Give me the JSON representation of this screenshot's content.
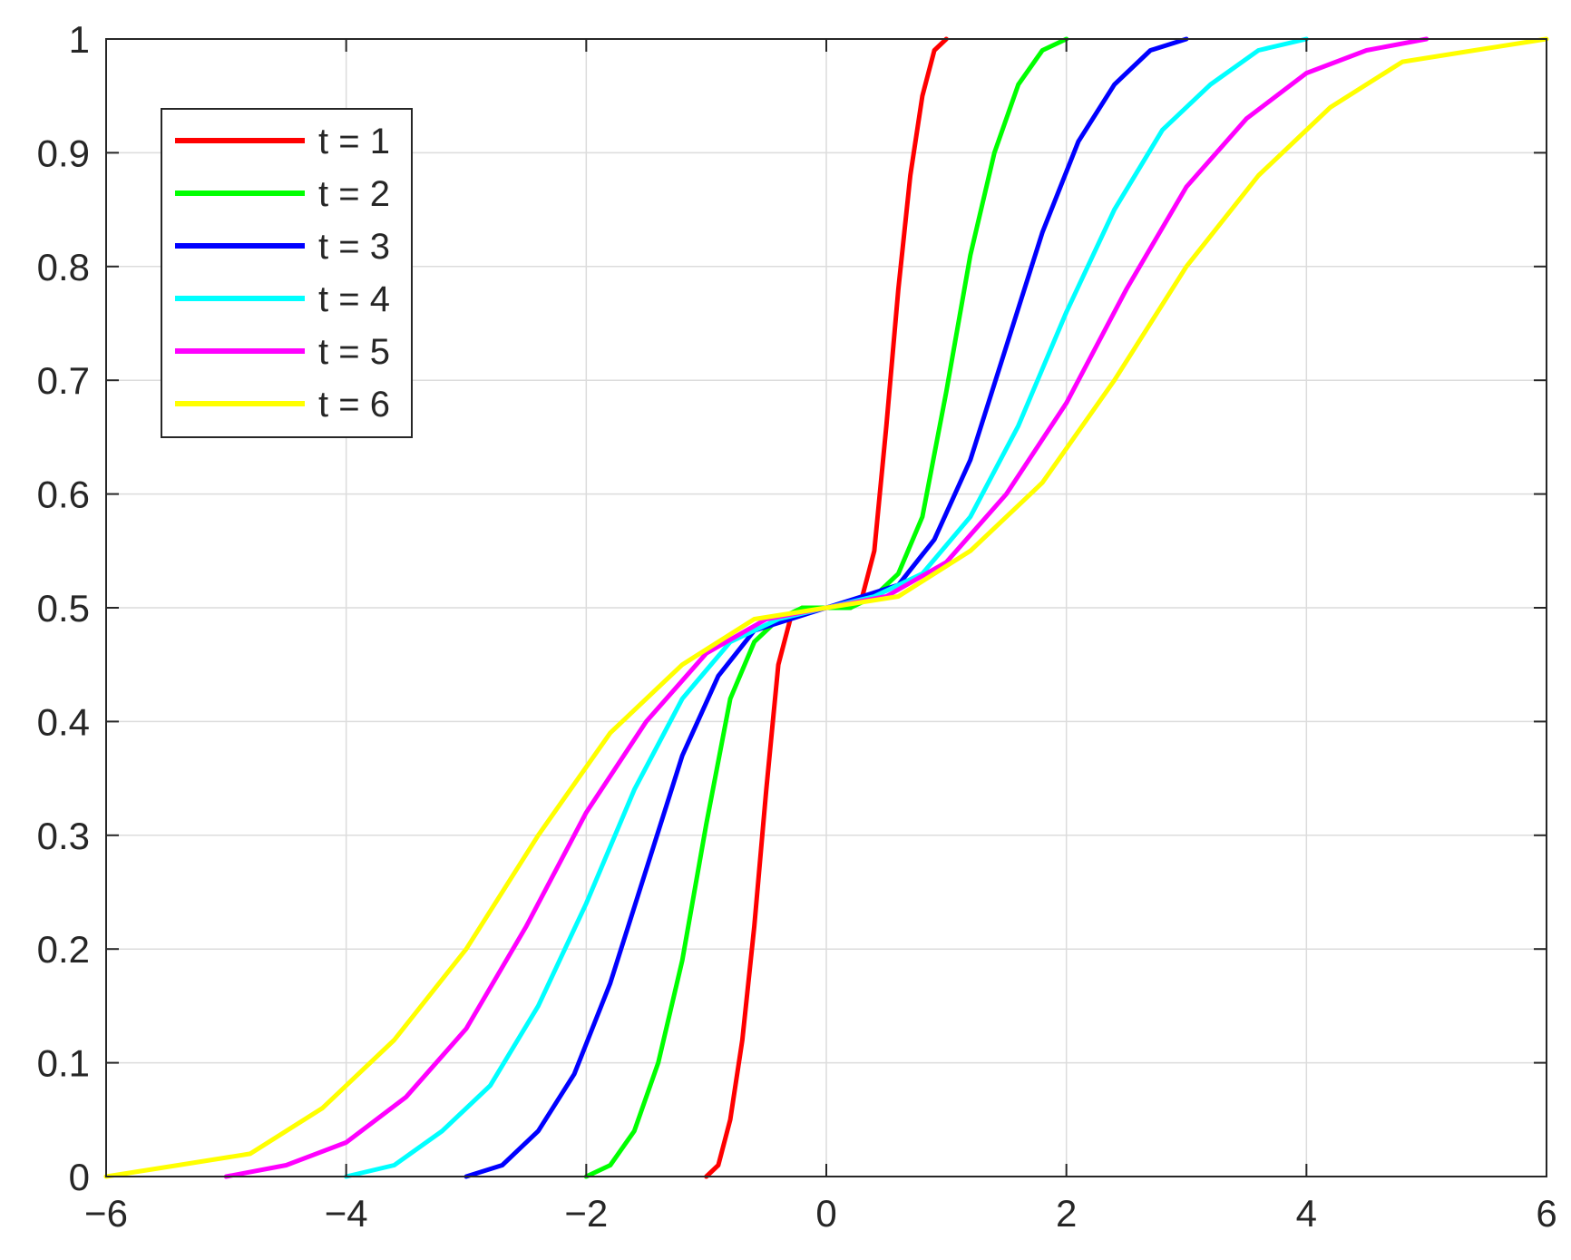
{
  "chart_data": {
    "type": "line",
    "title": "",
    "xlabel": "",
    "ylabel": "",
    "xlim": [
      -6,
      6
    ],
    "ylim": [
      0,
      1
    ],
    "xticks": [
      -6,
      -4,
      -2,
      0,
      2,
      4,
      6
    ],
    "xtick_labels": [
      "−6",
      "−4",
      "−2",
      "0",
      "2",
      "4",
      "6"
    ],
    "yticks": [
      0,
      0.1,
      0.2,
      0.3,
      0.4,
      0.5,
      0.6,
      0.7,
      0.8,
      0.9,
      1
    ],
    "ytick_labels": [
      "0",
      "0.1",
      "0.2",
      "0.3",
      "0.4",
      "0.5",
      "0.6",
      "0.7",
      "0.8",
      "0.9",
      "1"
    ],
    "grid": true,
    "legend_position": "top-left",
    "series": [
      {
        "name": "t = 1",
        "color": "#ff0000",
        "x": [
          -1,
          -0.9,
          -0.8,
          -0.7,
          -0.6,
          -0.5,
          -0.4,
          -0.3,
          -0.2,
          -0.1,
          0,
          0.1,
          0.2,
          0.3,
          0.4,
          0.5,
          0.6,
          0.7,
          0.8,
          0.9,
          1
        ],
        "y": [
          0,
          0.01,
          0.05,
          0.12,
          0.22,
          0.34,
          0.45,
          0.49,
          0.5,
          0.5,
          0.5,
          0.5,
          0.5,
          0.51,
          0.55,
          0.66,
          0.78,
          0.88,
          0.95,
          0.99,
          1
        ]
      },
      {
        "name": "t = 2",
        "color": "#00ff00",
        "x": [
          -2,
          -1.8,
          -1.6,
          -1.4,
          -1.2,
          -1,
          -0.8,
          -0.6,
          -0.4,
          -0.2,
          0,
          0.2,
          0.4,
          0.6,
          0.8,
          1,
          1.2,
          1.4,
          1.6,
          1.8,
          2
        ],
        "y": [
          0,
          0.01,
          0.04,
          0.1,
          0.19,
          0.31,
          0.42,
          0.47,
          0.49,
          0.5,
          0.5,
          0.5,
          0.51,
          0.53,
          0.58,
          0.69,
          0.81,
          0.9,
          0.96,
          0.99,
          1
        ]
      },
      {
        "name": "t = 3",
        "color": "#0000ff",
        "x": [
          -3,
          -2.7,
          -2.4,
          -2.1,
          -1.8,
          -1.5,
          -1.2,
          -0.9,
          -0.6,
          -0.3,
          0,
          0.3,
          0.6,
          0.9,
          1.2,
          1.5,
          1.8,
          2.1,
          2.4,
          2.7,
          3
        ],
        "y": [
          0,
          0.01,
          0.04,
          0.09,
          0.17,
          0.27,
          0.37,
          0.44,
          0.48,
          0.49,
          0.5,
          0.51,
          0.52,
          0.56,
          0.63,
          0.73,
          0.83,
          0.91,
          0.96,
          0.99,
          1
        ]
      },
      {
        "name": "t = 4",
        "color": "#00ffff",
        "x": [
          -4,
          -3.6,
          -3.2,
          -2.8,
          -2.4,
          -2,
          -1.6,
          -1.2,
          -0.8,
          -0.4,
          0,
          0.4,
          0.8,
          1.2,
          1.6,
          2,
          2.4,
          2.8,
          3.2,
          3.6,
          4
        ],
        "y": [
          0,
          0.01,
          0.04,
          0.08,
          0.15,
          0.24,
          0.34,
          0.42,
          0.47,
          0.49,
          0.5,
          0.51,
          0.53,
          0.58,
          0.66,
          0.76,
          0.85,
          0.92,
          0.96,
          0.99,
          1
        ]
      },
      {
        "name": "t = 5",
        "color": "#ff00ff",
        "x": [
          -5,
          -4.5,
          -4,
          -3.5,
          -3,
          -2.5,
          -2,
          -1.5,
          -1,
          -0.5,
          0,
          0.5,
          1,
          1.5,
          2,
          2.5,
          3,
          3.5,
          4,
          4.5,
          5
        ],
        "y": [
          0,
          0.01,
          0.03,
          0.07,
          0.13,
          0.22,
          0.32,
          0.4,
          0.46,
          0.49,
          0.5,
          0.51,
          0.54,
          0.6,
          0.68,
          0.78,
          0.87,
          0.93,
          0.97,
          0.99,
          1
        ]
      },
      {
        "name": "t = 6",
        "color": "#ffff00",
        "x": [
          -6,
          -5.4,
          -4.8,
          -4.2,
          -3.6,
          -3,
          -2.4,
          -1.8,
          -1.2,
          -0.6,
          0,
          0.6,
          1.2,
          1.8,
          2.4,
          3,
          3.6,
          4.2,
          4.8,
          5.4,
          6
        ],
        "y": [
          0,
          0.01,
          0.02,
          0.06,
          0.12,
          0.2,
          0.3,
          0.39,
          0.45,
          0.49,
          0.5,
          0.51,
          0.55,
          0.61,
          0.7,
          0.8,
          0.88,
          0.94,
          0.98,
          0.99,
          1
        ]
      }
    ]
  }
}
